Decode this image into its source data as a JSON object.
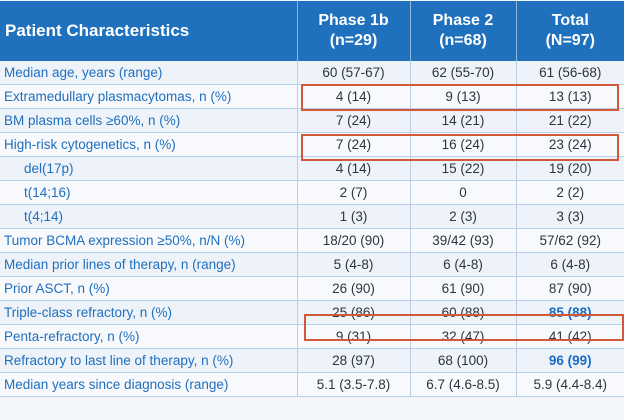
{
  "header": {
    "label": "Patient Characteristics",
    "phase1b_name": "Phase 1b",
    "phase1b_n": "(n=29)",
    "phase2_name": "Phase 2",
    "phase2_n": "(n=68)",
    "total_name": "Total",
    "total_n": "(N=97)"
  },
  "rows": [
    {
      "label": "Median age, years (range)",
      "p1b": "60 (57-67)",
      "p2": "62 (55-70)",
      "total": "61 (56-68)"
    },
    {
      "label": "Extramedullary plasmacytomas, n (%)",
      "p1b": "4 (14)",
      "p2": "9 (13)",
      "total": "13 (13)"
    },
    {
      "label": "BM plasma cells ≥60%, n (%)",
      "p1b": "7 (24)",
      "p2": "14 (21)",
      "total": "21 (22)"
    },
    {
      "label": "High-risk cytogenetics, n (%)",
      "p1b": "7 (24)",
      "p2": "16 (24)",
      "total": "23 (24)"
    },
    {
      "label": "del(17p)",
      "p1b": "4 (14)",
      "p2": "15 (22)",
      "total": "19 (20)"
    },
    {
      "label": "t(14;16)",
      "p1b": "2 (7)",
      "p2": "0",
      "total": "2 (2)"
    },
    {
      "label": "t(4;14)",
      "p1b": "1 (3)",
      "p2": "2 (3)",
      "total": "3 (3)"
    },
    {
      "label": "Tumor BCMA expression ≥50%, n/N (%)",
      "p1b": "18/20 (90)",
      "p2": "39/42 (93)",
      "total": "57/62 (92)"
    },
    {
      "label": "Median prior lines of therapy, n (range)",
      "p1b": "5 (4-8)",
      "p2": "6 (4-8)",
      "total": "6 (4-8)"
    },
    {
      "label": "Prior ASCT, n (%)",
      "p1b": "26 (90)",
      "p2": "61 (90)",
      "total": "87 (90)"
    },
    {
      "label": "Triple-class refractory, n (%)",
      "p1b": "25 (86)",
      "p2": "60 (88)",
      "total": "85 (88)"
    },
    {
      "label": "Penta-refractory, n (%)",
      "p1b": "9 (31)",
      "p2": "32 (47)",
      "total": "41 (42)"
    },
    {
      "label": "Refractory to last line of therapy, n (%)",
      "p1b": "28 (97)",
      "p2": "68 (100)",
      "total": "96 (99)"
    },
    {
      "label": "Median years since diagnosis (range)",
      "p1b": "5.1 (3.5-7.8)",
      "p2": "6.7 (4.6-8.5)",
      "total": "5.9 (4.4-8.4)"
    }
  ],
  "colors": {
    "header_bg": "#1f71bd",
    "label_text": "#1f6fbf",
    "highlight_box": "#d2583a",
    "emphasis_value": "#1a6cc4"
  }
}
